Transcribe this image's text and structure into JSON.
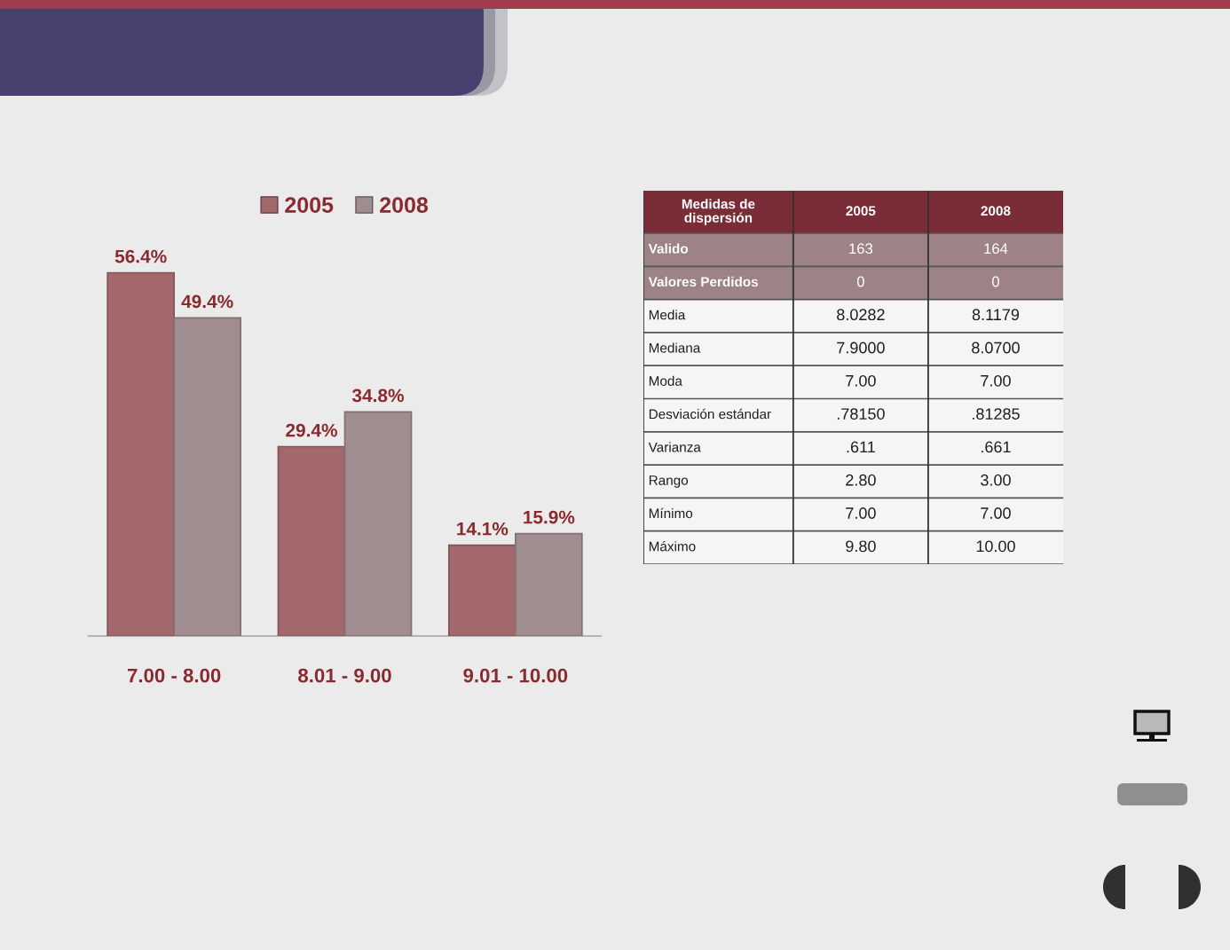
{
  "chart_data": [
    {
      "type": "bar",
      "categories": [
        "7.00 - 8.00",
        "8.01 - 9.00",
        "9.01 - 10.00"
      ],
      "series": [
        {
          "name": "2005",
          "color": "#a2686b",
          "values": [
            56.4,
            29.4,
            14.1
          ],
          "value_labels": [
            "56.4%",
            "29.4%",
            "14.1%"
          ]
        },
        {
          "name": "2008",
          "color": "#a08d90",
          "values": [
            49.4,
            34.8,
            15.9
          ],
          "value_labels": [
            "49.4%",
            "34.8%",
            "15.9%"
          ]
        }
      ],
      "tick_labels": "x",
      "legend": "top",
      "grid": false
    },
    {
      "type": "other",
      "title": "Medidas de dispersión",
      "categories": [
        "Valido",
        "Valores Perdidos",
        "Media",
        "Mediana",
        "Moda",
        "Desviación estándar",
        "Varianza",
        "Rango",
        "Mínimo",
        "Máximo"
      ],
      "series": [
        {
          "name": "2005",
          "colors": [
            "#9d8286",
            "#9d8286",
            "#f5f5f5",
            "#f5f5f5",
            "#f5f5f5",
            "#f5f5f5",
            "#f5f5f5",
            "#f5f5f5",
            "#f5f5f5",
            "#f5f5f5"
          ],
          "values": [
            163,
            0,
            8.0282,
            7.9,
            7,
            0.7815,
            0.611,
            2.8,
            7,
            9.8
          ],
          "value_labels": [
            "163",
            "0",
            "8.0282",
            "7.9000",
            "7.00",
            ".78150",
            ".611",
            "2.80",
            "7.00",
            "9.80"
          ]
        },
        {
          "name": "2008",
          "colors": [
            "#9d8286",
            "#9d8286",
            "#f5f5f5",
            "#f5f5f5",
            "#f5f5f5",
            "#f5f5f5",
            "#f5f5f5",
            "#f5f5f5",
            "#f5f5f5",
            "#f5f5f5"
          ],
          "values": [
            164,
            0,
            8.1179,
            8.07,
            7,
            0.81285,
            0.661,
            3,
            7,
            10
          ],
          "value_labels": [
            "164",
            "0",
            "8.1179",
            "8.0700",
            "7.00",
            ".81285",
            ".661",
            "3.00",
            "7.00",
            "10.00"
          ]
        }
      ]
    }
  ]
}
